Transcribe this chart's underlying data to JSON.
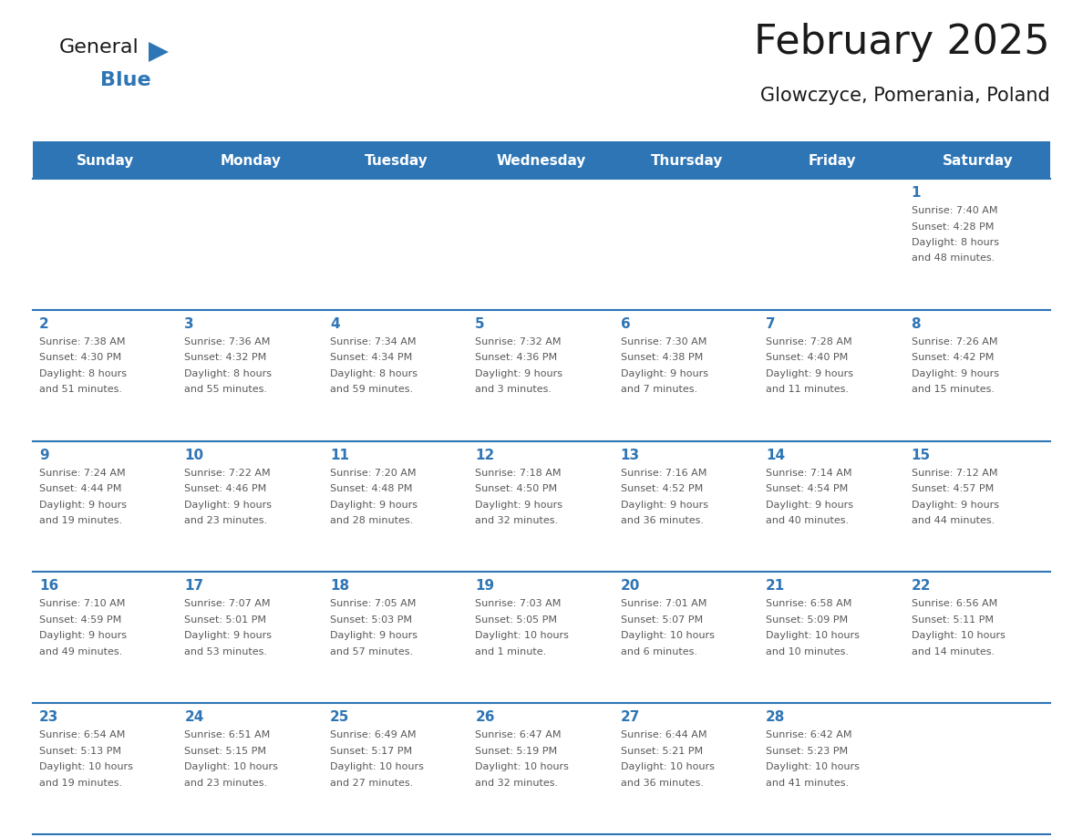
{
  "title": "February 2025",
  "subtitle": "Glowczyce, Pomerania, Poland",
  "header_bg": "#2E75B6",
  "header_text_color": "#FFFFFF",
  "cell_border_color": "#2E75B6",
  "day_number_color": "#2E75B6",
  "info_text_color": "#595959",
  "background_color": "#FFFFFF",
  "row_bg_odd": "#F2F2F2",
  "row_bg_even": "#FFFFFF",
  "weekdays": [
    "Sunday",
    "Monday",
    "Tuesday",
    "Wednesday",
    "Thursday",
    "Friday",
    "Saturday"
  ],
  "weeks": [
    [
      {
        "day": null,
        "sunrise": null,
        "sunset": null,
        "daylight": null
      },
      {
        "day": null,
        "sunrise": null,
        "sunset": null,
        "daylight": null
      },
      {
        "day": null,
        "sunrise": null,
        "sunset": null,
        "daylight": null
      },
      {
        "day": null,
        "sunrise": null,
        "sunset": null,
        "daylight": null
      },
      {
        "day": null,
        "sunrise": null,
        "sunset": null,
        "daylight": null
      },
      {
        "day": null,
        "sunrise": null,
        "sunset": null,
        "daylight": null
      },
      {
        "day": 1,
        "sunrise": "7:40 AM",
        "sunset": "4:28 PM",
        "daylight": "8 hours and 48 minutes."
      }
    ],
    [
      {
        "day": 2,
        "sunrise": "7:38 AM",
        "sunset": "4:30 PM",
        "daylight": "8 hours and 51 minutes."
      },
      {
        "day": 3,
        "sunrise": "7:36 AM",
        "sunset": "4:32 PM",
        "daylight": "8 hours and 55 minutes."
      },
      {
        "day": 4,
        "sunrise": "7:34 AM",
        "sunset": "4:34 PM",
        "daylight": "8 hours and 59 minutes."
      },
      {
        "day": 5,
        "sunrise": "7:32 AM",
        "sunset": "4:36 PM",
        "daylight": "9 hours and 3 minutes."
      },
      {
        "day": 6,
        "sunrise": "7:30 AM",
        "sunset": "4:38 PM",
        "daylight": "9 hours and 7 minutes."
      },
      {
        "day": 7,
        "sunrise": "7:28 AM",
        "sunset": "4:40 PM",
        "daylight": "9 hours and 11 minutes."
      },
      {
        "day": 8,
        "sunrise": "7:26 AM",
        "sunset": "4:42 PM",
        "daylight": "9 hours and 15 minutes."
      }
    ],
    [
      {
        "day": 9,
        "sunrise": "7:24 AM",
        "sunset": "4:44 PM",
        "daylight": "9 hours and 19 minutes."
      },
      {
        "day": 10,
        "sunrise": "7:22 AM",
        "sunset": "4:46 PM",
        "daylight": "9 hours and 23 minutes."
      },
      {
        "day": 11,
        "sunrise": "7:20 AM",
        "sunset": "4:48 PM",
        "daylight": "9 hours and 28 minutes."
      },
      {
        "day": 12,
        "sunrise": "7:18 AM",
        "sunset": "4:50 PM",
        "daylight": "9 hours and 32 minutes."
      },
      {
        "day": 13,
        "sunrise": "7:16 AM",
        "sunset": "4:52 PM",
        "daylight": "9 hours and 36 minutes."
      },
      {
        "day": 14,
        "sunrise": "7:14 AM",
        "sunset": "4:54 PM",
        "daylight": "9 hours and 40 minutes."
      },
      {
        "day": 15,
        "sunrise": "7:12 AM",
        "sunset": "4:57 PM",
        "daylight": "9 hours and 44 minutes."
      }
    ],
    [
      {
        "day": 16,
        "sunrise": "7:10 AM",
        "sunset": "4:59 PM",
        "daylight": "9 hours and 49 minutes."
      },
      {
        "day": 17,
        "sunrise": "7:07 AM",
        "sunset": "5:01 PM",
        "daylight": "9 hours and 53 minutes."
      },
      {
        "day": 18,
        "sunrise": "7:05 AM",
        "sunset": "5:03 PM",
        "daylight": "9 hours and 57 minutes."
      },
      {
        "day": 19,
        "sunrise": "7:03 AM",
        "sunset": "5:05 PM",
        "daylight": "10 hours and 1 minute."
      },
      {
        "day": 20,
        "sunrise": "7:01 AM",
        "sunset": "5:07 PM",
        "daylight": "10 hours and 6 minutes."
      },
      {
        "day": 21,
        "sunrise": "6:58 AM",
        "sunset": "5:09 PM",
        "daylight": "10 hours and 10 minutes."
      },
      {
        "day": 22,
        "sunrise": "6:56 AM",
        "sunset": "5:11 PM",
        "daylight": "10 hours and 14 minutes."
      }
    ],
    [
      {
        "day": 23,
        "sunrise": "6:54 AM",
        "sunset": "5:13 PM",
        "daylight": "10 hours and 19 minutes."
      },
      {
        "day": 24,
        "sunrise": "6:51 AM",
        "sunset": "5:15 PM",
        "daylight": "10 hours and 23 minutes."
      },
      {
        "day": 25,
        "sunrise": "6:49 AM",
        "sunset": "5:17 PM",
        "daylight": "10 hours and 27 minutes."
      },
      {
        "day": 26,
        "sunrise": "6:47 AM",
        "sunset": "5:19 PM",
        "daylight": "10 hours and 32 minutes."
      },
      {
        "day": 27,
        "sunrise": "6:44 AM",
        "sunset": "5:21 PM",
        "daylight": "10 hours and 36 minutes."
      },
      {
        "day": 28,
        "sunrise": "6:42 AM",
        "sunset": "5:23 PM",
        "daylight": "10 hours and 41 minutes."
      },
      {
        "day": null,
        "sunrise": null,
        "sunset": null,
        "daylight": null
      }
    ]
  ],
  "logo_text1": "General",
  "logo_text2": "Blue",
  "logo_text1_color": "#1a1a1a",
  "logo_text2_color": "#2E75B6",
  "logo_triangle_color": "#2E75B6",
  "title_fontsize": 32,
  "subtitle_fontsize": 15,
  "header_fontsize": 11,
  "day_num_fontsize": 11,
  "info_fontsize": 8,
  "logo_fontsize1": 16,
  "logo_fontsize2": 16
}
